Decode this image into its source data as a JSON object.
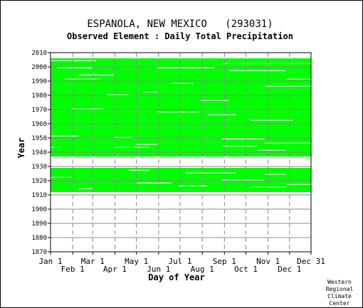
{
  "chart_data": {
    "type": "heatmap",
    "title": "ESPANOLA, NEW MEXICO   (293031)",
    "subtitle": "Observed Element : Daily Total Precipitation",
    "xlabel": "Day of Year",
    "ylabel": "Year",
    "credit": [
      "Western",
      "Regional",
      "Climate",
      "Center"
    ],
    "x_ticks_top": [
      "Jan 1",
      "Mar 1",
      "May 1",
      "Jul 1",
      "Sep 1",
      "Nov 1",
      "Dec 31"
    ],
    "x_ticks_bottom": [
      "Feb 1",
      "Apr 1",
      "Jun 1",
      "Aug 1",
      "Oct 1",
      "Dec 1"
    ],
    "y_ticks": [
      "2010",
      "2000",
      "1990",
      "1980",
      "1970",
      "1960",
      "1950",
      "1940",
      "1930",
      "1920",
      "1910",
      "1900",
      "1890",
      "1880",
      "1870"
    ],
    "xlim": [
      1,
      365
    ],
    "ylim": [
      1870,
      2010
    ],
    "grid": true,
    "present_color": "#00ff00",
    "data_periods": [
      {
        "start_year": 1912,
        "end_year": 1928
      },
      {
        "start_year": 1937,
        "end_year": 2005
      }
    ],
    "missing_year_ranges": [
      [
        1929,
        1936
      ]
    ],
    "gaps": [
      {
        "year": 2004,
        "start_day": 1,
        "end_day": 65
      },
      {
        "year": 2002,
        "start_day": 240,
        "end_day": 365
      },
      {
        "year": 1999,
        "start_day": 10,
        "end_day": 60
      },
      {
        "year": 1999,
        "start_day": 150,
        "end_day": 230
      },
      {
        "year": 1997,
        "start_day": 250,
        "end_day": 330
      },
      {
        "year": 1994,
        "start_day": 40,
        "end_day": 90
      },
      {
        "year": 1991,
        "start_day": 20,
        "end_day": 70
      },
      {
        "year": 1991,
        "start_day": 330,
        "end_day": 365
      },
      {
        "year": 1988,
        "start_day": 170,
        "end_day": 200
      },
      {
        "year": 1986,
        "start_day": 300,
        "end_day": 365
      },
      {
        "year": 1982,
        "start_day": 130,
        "end_day": 150
      },
      {
        "year": 1980,
        "start_day": 80,
        "end_day": 110
      },
      {
        "year": 1976,
        "start_day": 210,
        "end_day": 250
      },
      {
        "year": 1970,
        "start_day": 30,
        "end_day": 75
      },
      {
        "year": 1968,
        "start_day": 150,
        "end_day": 210
      },
      {
        "year": 1966,
        "start_day": 220,
        "end_day": 260
      },
      {
        "year": 1962,
        "start_day": 280,
        "end_day": 340
      },
      {
        "year": 1951,
        "start_day": 1,
        "end_day": 40
      },
      {
        "year": 1950,
        "start_day": 90,
        "end_day": 115
      },
      {
        "year": 1949,
        "start_day": 240,
        "end_day": 300
      },
      {
        "year": 1946,
        "start_day": 300,
        "end_day": 365
      },
      {
        "year": 1945,
        "start_day": 120,
        "end_day": 150
      },
      {
        "year": 1944,
        "start_day": 240,
        "end_day": 290
      },
      {
        "year": 1943,
        "start_day": 1,
        "end_day": 15
      },
      {
        "year": 1943,
        "start_day": 90,
        "end_day": 140
      },
      {
        "year": 1941,
        "start_day": 290,
        "end_day": 330
      },
      {
        "year": 1927,
        "start_day": 110,
        "end_day": 140
      },
      {
        "year": 1925,
        "start_day": 190,
        "end_day": 260
      },
      {
        "year": 1924,
        "start_day": 300,
        "end_day": 330
      },
      {
        "year": 1922,
        "start_day": 1,
        "end_day": 30
      },
      {
        "year": 1920,
        "start_day": 240,
        "end_day": 300
      },
      {
        "year": 1918,
        "start_day": 120,
        "end_day": 170
      },
      {
        "year": 1917,
        "start_day": 330,
        "end_day": 365
      },
      {
        "year": 1916,
        "start_day": 180,
        "end_day": 220
      },
      {
        "year": 1915,
        "start_day": 280,
        "end_day": 330
      },
      {
        "year": 1914,
        "start_day": 40,
        "end_day": 60
      }
    ]
  }
}
